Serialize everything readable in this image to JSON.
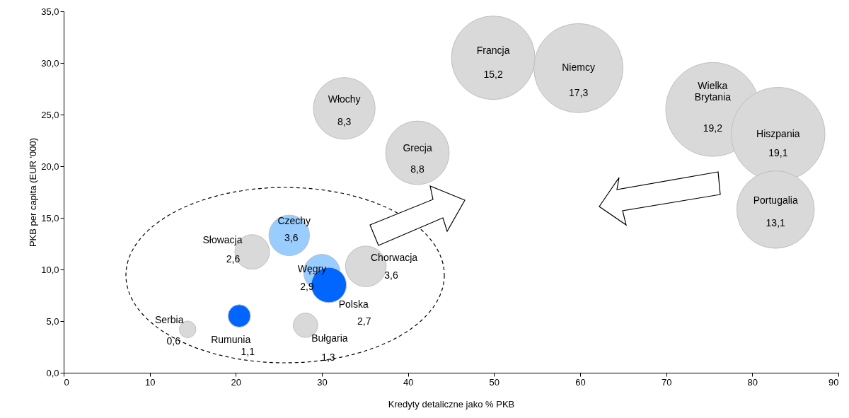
{
  "chart_data": {
    "type": "bubble",
    "xlabel": "Kredyty detaliczne jako % PKB",
    "ylabel": "PKB per capita (EUR '000)",
    "xlim": [
      0,
      90
    ],
    "xticks": [
      0,
      10,
      20,
      30,
      40,
      50,
      60,
      70,
      80,
      90
    ],
    "ylim": [
      0,
      35
    ],
    "yticks": [
      {
        "value": 0,
        "label": "0,0"
      },
      {
        "value": 5,
        "label": "5,0"
      },
      {
        "value": 10,
        "label": "10,0"
      },
      {
        "value": 15,
        "label": "15,0"
      },
      {
        "value": 20,
        "label": "20,0"
      },
      {
        "value": 25,
        "label": "25,0"
      },
      {
        "value": 30,
        "label": "30,0"
      },
      {
        "value": 35,
        "label": "35,0"
      }
    ],
    "grid": false,
    "legend": false,
    "series": [
      {
        "x": [
          14.4,
          20.4,
          28.1,
          21.9,
          26.2,
          30.0,
          30.8,
          35.1,
          32.6,
          41.1,
          49.9,
          59.8,
          75.4,
          83.0,
          82.7
        ],
        "values": [
          4.2,
          5.5,
          4.6,
          11.7,
          13.3,
          9.7,
          8.5,
          10.3,
          25.6,
          21.3,
          30.5,
          29.5,
          25.5,
          23.1,
          15.8
        ],
        "sizes": [
          0.6,
          1.1,
          1.3,
          2.6,
          3.6,
          2.9,
          2.7,
          3.6,
          8.3,
          8.8,
          15.2,
          17.3,
          19.2,
          19.1,
          13.1
        ],
        "value_labels": [
          "0,6",
          "1,1",
          "1,3",
          "2,6",
          "3,6",
          "2,9",
          "2,7",
          "3,6",
          "8,3",
          "8,8",
          "15,2",
          "17,3",
          "19,2",
          "19,1",
          "13,1"
        ],
        "colors": [
          "#d9d9d9",
          "#0066ff",
          "#d9d9d9",
          "#d9d9d9",
          "#99ccff",
          "#99ccff",
          "#0066ff",
          "#d9d9d9",
          "#d9d9d9",
          "#d9d9d9",
          "#d9d9d9",
          "#d9d9d9",
          "#d9d9d9",
          "#d9d9d9",
          "#d9d9d9"
        ]
      }
    ],
    "annotations": [
      {
        "text": "Serbia",
        "x": 14.4,
        "y": 4.2
      },
      {
        "text": "Rumunia",
        "x": 20.4,
        "y": 5.5
      },
      {
        "text": "Bułgaria",
        "x": 28.1,
        "y": 4.6
      },
      {
        "text": "Słowacja",
        "x": 21.9,
        "y": 11.7
      },
      {
        "text": "Czechy",
        "x": 26.2,
        "y": 13.3
      },
      {
        "text": "Węgry",
        "x": 30.0,
        "y": 9.7
      },
      {
        "text": "Polska",
        "x": 30.8,
        "y": 8.5
      },
      {
        "text": "Chorwacja",
        "x": 35.1,
        "y": 10.3
      },
      {
        "text": "Włochy",
        "x": 32.6,
        "y": 25.6
      },
      {
        "text": "Grecja",
        "x": 41.1,
        "y": 21.3
      },
      {
        "text": "Francja",
        "x": 49.9,
        "y": 30.5
      },
      {
        "text": "Niemcy",
        "x": 59.8,
        "y": 29.5
      },
      {
        "text": "Wielka Brytania",
        "x": 75.4,
        "y": 25.5
      },
      {
        "text": "Hiszpania",
        "x": 83.0,
        "y": 23.1
      },
      {
        "text": "Portugalia",
        "x": 82.7,
        "y": 15.8
      }
    ]
  }
}
